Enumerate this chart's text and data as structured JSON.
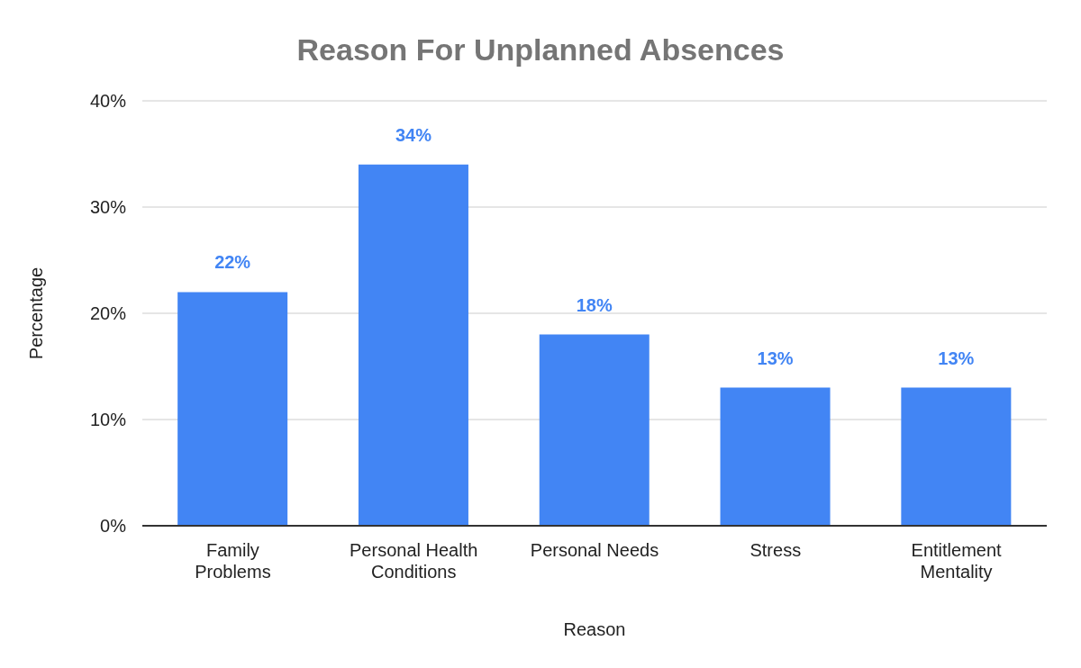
{
  "chart_data": {
    "type": "bar",
    "title": "Reason For Unplanned Absences",
    "xlabel": "Reason",
    "ylabel": "Percentage",
    "categories": [
      "Family Problems",
      "Personal Health Conditions",
      "Personal Needs",
      "Stress",
      "Entitlement Mentality"
    ],
    "values": [
      22,
      34,
      18,
      13,
      13
    ],
    "color": "#4285f4",
    "value_labels": [
      "22%",
      "34%",
      "18%",
      "13%",
      "13%"
    ],
    "ylim": [
      0,
      40
    ],
    "yticks": [
      {
        "value": 0,
        "label": "0%"
      },
      {
        "value": 10,
        "label": "10%"
      },
      {
        "value": 20,
        "label": "20%"
      },
      {
        "value": 30,
        "label": "30%"
      },
      {
        "value": 40,
        "label": "40%"
      }
    ],
    "grid": "y",
    "legend": false
  }
}
